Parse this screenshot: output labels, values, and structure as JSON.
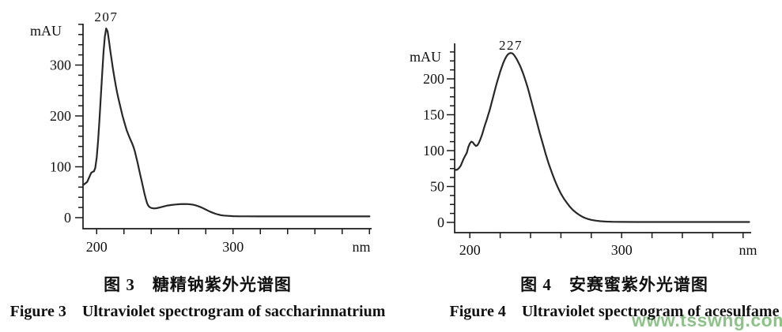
{
  "page": {
    "background": "#ffffff",
    "text_color": "#111111",
    "curve_color": "#282828"
  },
  "watermark": {
    "text": "www.tsswng.com",
    "color": "#78b973"
  },
  "chart_data": [
    {
      "type": "line",
      "title_cn": "图 3　糖精钠紫外光谱图",
      "title_en": "Figure 3　Ultraviolet spectrogram of saccharinnatrium",
      "xlabel": "nm",
      "ylabel": "mAU",
      "xlim": [
        190,
        402
      ],
      "ylim": [
        0,
        381
      ],
      "grid": false,
      "legend": "none",
      "x_ticks": {
        "min": 200,
        "max": 400,
        "step": 20,
        "labeled": [
          200,
          300
        ]
      },
      "y_ticks": {
        "minor_step": 20,
        "minor_max": 380,
        "labeled": [
          0,
          100,
          200,
          300
        ]
      },
      "peak": {
        "label": "207",
        "x": 207,
        "y": 372
      },
      "series": [
        {
          "name": "saccharin sodium UV absorbance",
          "points": [
            [
              190,
              64
            ],
            [
              191.5,
              67
            ],
            [
              193,
              70
            ],
            [
              194,
              76
            ],
            [
              195,
              82
            ],
            [
              196,
              88
            ],
            [
              197,
              90
            ],
            [
              198,
              91
            ],
            [
              199,
              98
            ],
            [
              200,
              118
            ],
            [
              201,
              150
            ],
            [
              202,
              190
            ],
            [
              203,
              235
            ],
            [
              204,
              282
            ],
            [
              205,
              325
            ],
            [
              206,
              356
            ],
            [
              207,
              372
            ],
            [
              208,
              366
            ],
            [
              209,
              348
            ],
            [
              210,
              328
            ],
            [
              211,
              310
            ],
            [
              212,
              292
            ],
            [
              213,
              275
            ],
            [
              214,
              260
            ],
            [
              215,
              246
            ],
            [
              216,
              234
            ],
            [
              217,
              222
            ],
            [
              218,
              211
            ],
            [
              219,
              200
            ],
            [
              220,
              190
            ],
            [
              221,
              181
            ],
            [
              222,
              172
            ],
            [
              224,
              158
            ],
            [
              225,
              152
            ],
            [
              226,
              146
            ],
            [
              227,
              139
            ],
            [
              228,
              130
            ],
            [
              229,
              119
            ],
            [
              230,
              108
            ],
            [
              231,
              96
            ],
            [
              232,
              84
            ],
            [
              233,
              72
            ],
            [
              234,
              60
            ],
            [
              235,
              48
            ],
            [
              236,
              37
            ],
            [
              237,
              28
            ],
            [
              238,
              23
            ],
            [
              239,
              20.5
            ],
            [
              240,
              19
            ],
            [
              242,
              18.2
            ],
            [
              244,
              18.6
            ],
            [
              246,
              19.8
            ],
            [
              248,
              21.2
            ],
            [
              250,
              22.6
            ],
            [
              252,
              23.8
            ],
            [
              255,
              25
            ],
            [
              258,
              25.9
            ],
            [
              261,
              26.5
            ],
            [
              264,
              26.8
            ],
            [
              267,
              26.6
            ],
            [
              269,
              26.1
            ],
            [
              271,
              25.2
            ],
            [
              273,
              23.8
            ],
            [
              275,
              22
            ],
            [
              277,
              19.8
            ],
            [
              279,
              17.2
            ],
            [
              281,
              14.5
            ],
            [
              283,
              12
            ],
            [
              285,
              9.8
            ],
            [
              287,
              7.8
            ],
            [
              289,
              6.2
            ],
            [
              291,
              5
            ],
            [
              293,
              4.2
            ],
            [
              296,
              3.5
            ],
            [
              300,
              3
            ],
            [
              305,
              2.7
            ],
            [
              310,
              2.6
            ],
            [
              320,
              2.5
            ],
            [
              330,
              2.5
            ],
            [
              340,
              2.5
            ],
            [
              350,
              2.5
            ],
            [
              360,
              2.5
            ],
            [
              370,
              2.5
            ],
            [
              380,
              2.5
            ],
            [
              390,
              2.5
            ],
            [
              400,
              2.5
            ]
          ]
        }
      ]
    },
    {
      "type": "line",
      "title_cn": "图 4　安赛蜜紫外光谱图",
      "title_en": "Figure 4　Ultraviolet spectrogram of acesulfame",
      "xlabel": "nm",
      "ylabel": "mAU",
      "xlim": [
        190,
        385
      ],
      "ylim": [
        0,
        248
      ],
      "grid": false,
      "legend": "none",
      "x_ticks": {
        "min": 200,
        "max": 380,
        "step": 20,
        "labeled": [
          200,
          300
        ]
      },
      "y_ticks": {
        "minor_step": 12.5,
        "minor_max": 237.5,
        "labeled": [
          0,
          50,
          100,
          150,
          200
        ]
      },
      "peak": {
        "label": "227",
        "x": 227,
        "y": 236
      },
      "series": [
        {
          "name": "acesulfame UV absorbance",
          "points": [
            [
              190.5,
              73.5
            ],
            [
              191,
              73
            ],
            [
              192,
              74
            ],
            [
              193,
              76
            ],
            [
              194,
              79
            ],
            [
              195,
              84
            ],
            [
              196,
              89
            ],
            [
              197,
              93
            ],
            [
              198,
              97
            ],
            [
              199,
              105
            ],
            [
              200,
              110
            ],
            [
              201,
              112.5
            ],
            [
              202,
              111.5
            ],
            [
              203,
              108.5
            ],
            [
              204,
              106.5
            ],
            [
              205,
              107.5
            ],
            [
              206,
              111
            ],
            [
              207,
              116
            ],
            [
              208,
              122
            ],
            [
              209,
              129
            ],
            [
              210,
              136
            ],
            [
              211,
              142
            ],
            [
              212,
              149
            ],
            [
              213,
              156
            ],
            [
              214,
              164
            ],
            [
              215,
              172
            ],
            [
              216,
              180
            ],
            [
              217,
              188
            ],
            [
              218,
              196
            ],
            [
              219,
              203
            ],
            [
              220,
              210
            ],
            [
              221,
              216
            ],
            [
              222,
              222
            ],
            [
              223,
              227
            ],
            [
              224,
              231
            ],
            [
              225,
              234
            ],
            [
              226,
              235.5
            ],
            [
              227,
              236
            ],
            [
              228,
              235.5
            ],
            [
              229,
              233.5
            ],
            [
              230,
              230.5
            ],
            [
              231,
              227
            ],
            [
              232,
              223
            ],
            [
              233,
              218.5
            ],
            [
              234,
              213.5
            ],
            [
              235,
              208
            ],
            [
              236,
              202
            ],
            [
              237,
              195.5
            ],
            [
              238,
              188.5
            ],
            [
              239,
              181
            ],
            [
              240,
              173
            ],
            [
              242,
              157
            ],
            [
              244,
              141
            ],
            [
              246,
              125
            ],
            [
              248,
              110
            ],
            [
              250,
              95
            ],
            [
              252,
              81.5
            ],
            [
              254,
              69.5
            ],
            [
              256,
              58.5
            ],
            [
              258,
              48.5
            ],
            [
              260,
              40
            ],
            [
              262,
              33
            ],
            [
              264,
              27
            ],
            [
              266,
              21.5
            ],
            [
              268,
              17
            ],
            [
              270,
              13.5
            ],
            [
              272,
              10.5
            ],
            [
              274,
              8
            ],
            [
              276,
              6
            ],
            [
              278,
              4.6
            ],
            [
              280,
              3.5
            ],
            [
              283,
              2.4
            ],
            [
              286,
              1.6
            ],
            [
              290,
              1.1
            ],
            [
              295,
              0.8
            ],
            [
              300,
              0.7
            ],
            [
              310,
              0.6
            ],
            [
              320,
              0.6
            ],
            [
              340,
              0.6
            ],
            [
              360,
              0.6
            ],
            [
              380,
              0.6
            ],
            [
              384,
              0.6
            ]
          ]
        }
      ]
    }
  ]
}
